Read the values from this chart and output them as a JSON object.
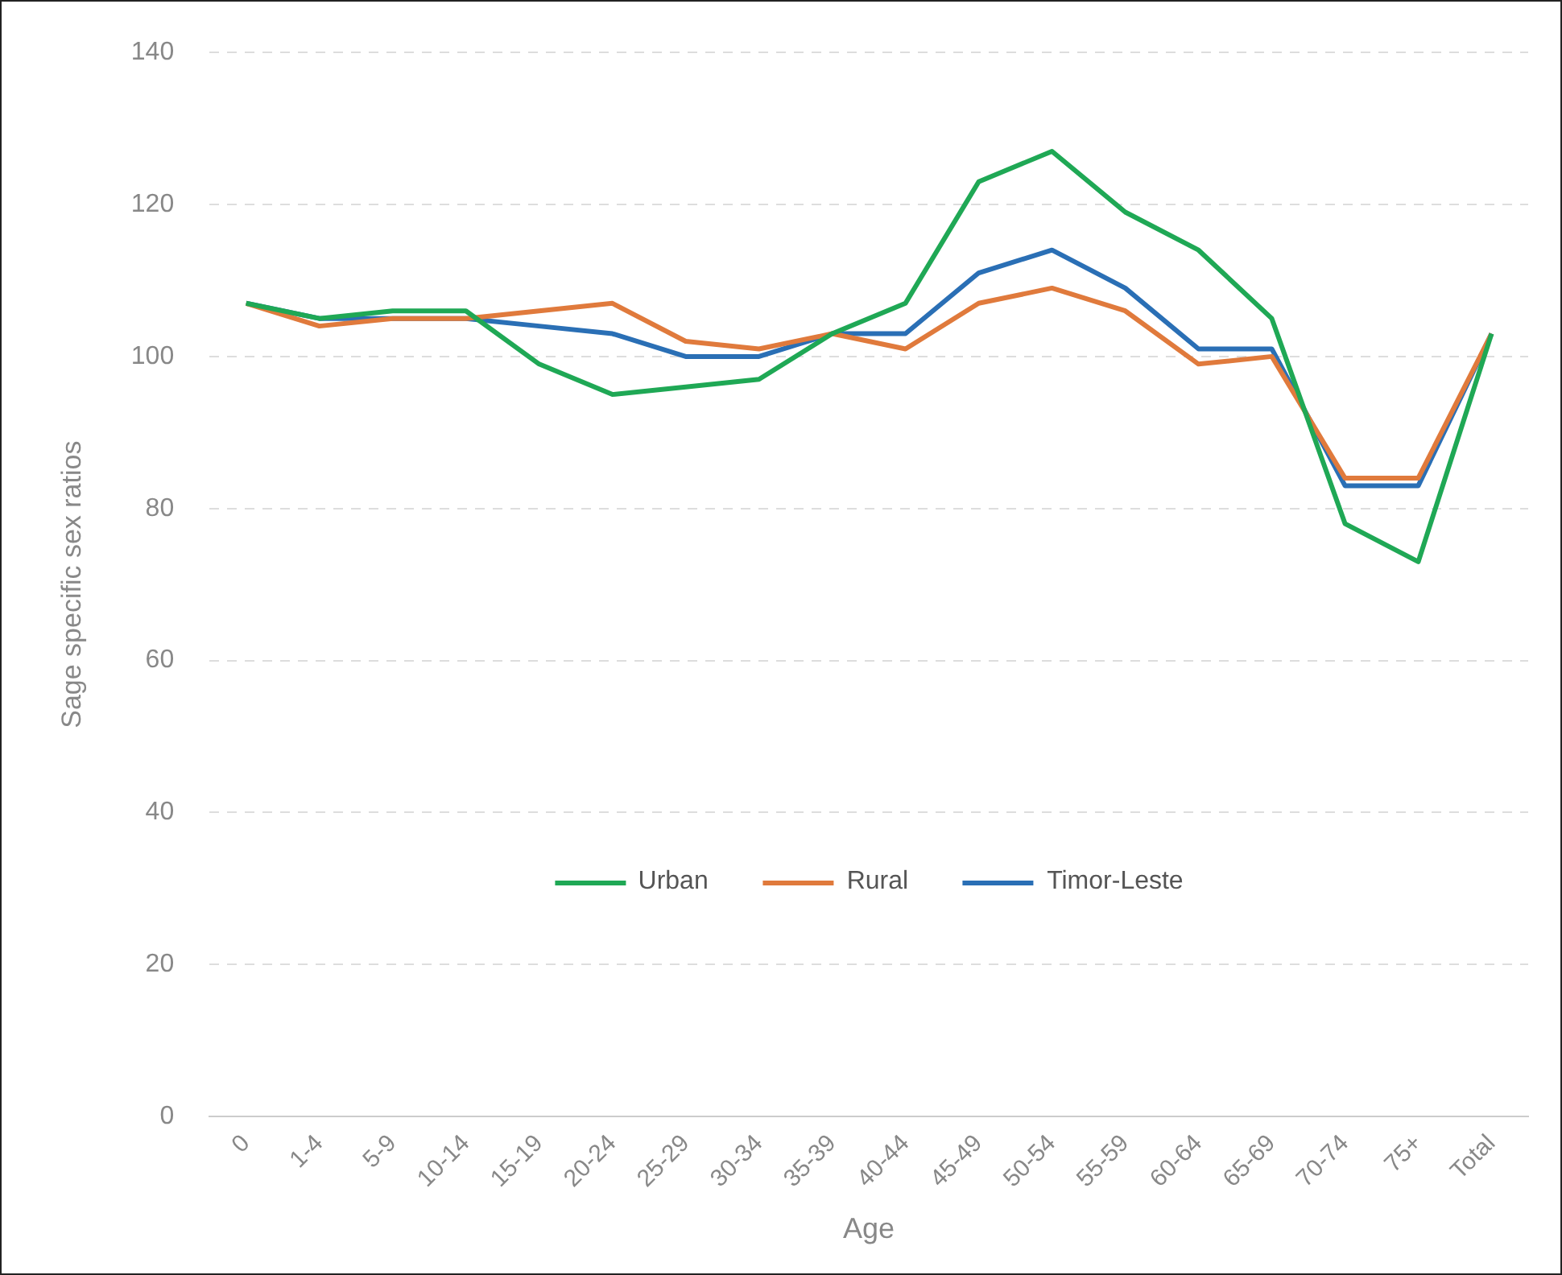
{
  "chart_data": {
    "type": "line",
    "xlabel": "Age",
    "ylabel": "Sage specific sex ratios",
    "categories": [
      "0",
      "1-4",
      "5-9",
      "10-14",
      "15-19",
      "20-24",
      "25-29",
      "30-34",
      "35-39",
      "40-44",
      "45-49",
      "50-54",
      "55-59",
      "60-64",
      "65-69",
      "70-74",
      "75+",
      "Total"
    ],
    "series": [
      {
        "name": "Urban",
        "color": "#1fa855",
        "values": [
          107,
          105,
          106,
          106,
          99,
          95,
          96,
          97,
          103,
          107,
          123,
          127,
          119,
          114,
          105,
          78,
          73,
          103
        ]
      },
      {
        "name": "Rural",
        "color": "#e07a3c",
        "values": [
          107,
          104,
          105,
          105,
          106,
          107,
          102,
          101,
          103,
          101,
          107,
          109,
          106,
          99,
          100,
          84,
          84,
          103
        ]
      },
      {
        "name": "Timor-Leste",
        "color": "#2a6fb5",
        "values": [
          107,
          105,
          105,
          105,
          104,
          103,
          100,
          100,
          103,
          103,
          111,
          114,
          109,
          101,
          101,
          83,
          83,
          103
        ]
      }
    ],
    "ylim": [
      0,
      140
    ],
    "yticks": [
      0,
      20,
      40,
      60,
      80,
      100,
      120,
      140
    ],
    "grid": "y",
    "legend": "center",
    "marker": "none",
    "line_style": "solid"
  }
}
